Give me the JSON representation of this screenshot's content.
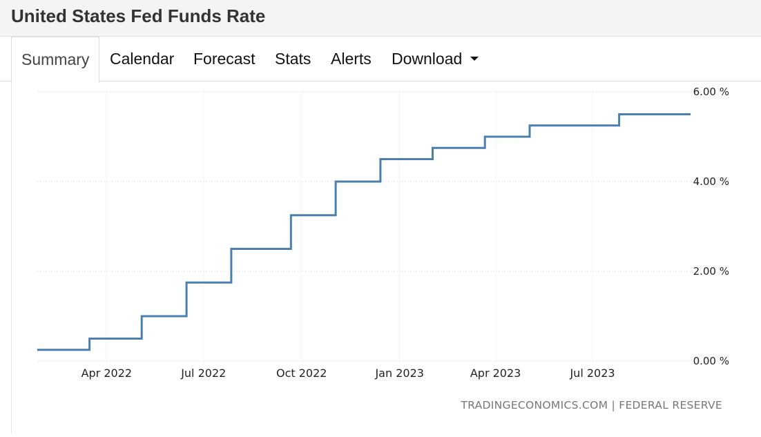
{
  "header": {
    "title": "United States Fed Funds Rate"
  },
  "tabs": [
    {
      "label": "Summary",
      "active": true
    },
    {
      "label": "Calendar"
    },
    {
      "label": "Forecast"
    },
    {
      "label": "Stats"
    },
    {
      "label": "Alerts"
    },
    {
      "label": "Download",
      "dropdown": true
    }
  ],
  "source": "TRADINGECONOMICS.COM | FEDERAL RESERVE",
  "chart_data": {
    "type": "line",
    "step": true,
    "series_color": "#4a7fb0",
    "x_ticks": [
      "Apr 2022",
      "Jul 2022",
      "Oct 2022",
      "Jan 2023",
      "Apr 2023",
      "Jul 2023"
    ],
    "y_ticks": [
      "0.00 %",
      "2.00 %",
      "4.00 %",
      "6.00 %"
    ],
    "ylim": [
      0,
      6
    ],
    "xlim": [
      "2022-01-26",
      "2023-10-01"
    ],
    "grid": true,
    "y_axis_side": "right",
    "x": [
      "2022-01-26",
      "2022-03-16",
      "2022-05-04",
      "2022-06-15",
      "2022-07-27",
      "2022-09-21",
      "2022-11-02",
      "2022-12-14",
      "2023-02-01",
      "2023-03-22",
      "2023-05-03",
      "2023-07-26",
      "2023-10-01"
    ],
    "values": [
      0.25,
      0.5,
      1.0,
      1.75,
      2.5,
      3.25,
      4.0,
      4.5,
      4.75,
      5.0,
      5.25,
      5.5,
      5.5
    ]
  }
}
